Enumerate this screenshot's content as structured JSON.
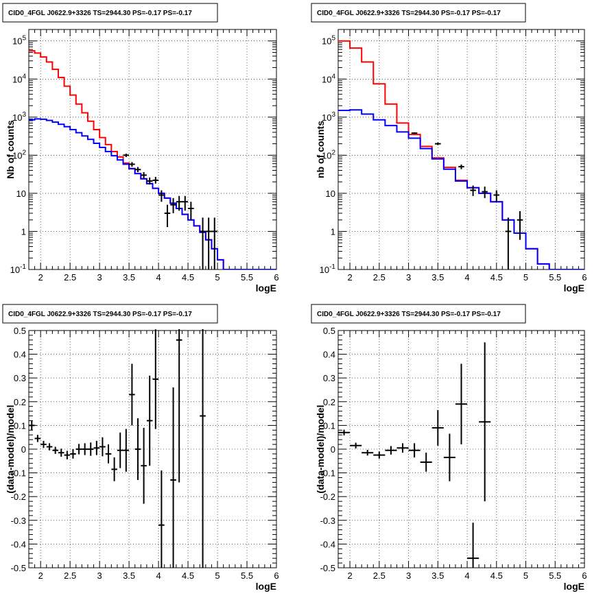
{
  "chart_data": [
    {
      "id": "spectrum-left",
      "type": "line",
      "title": "CID0_4FGL J0622.9+3326 TS=2944.30 PS=-0.17 PS=-0.17",
      "xlabel": "logE",
      "ylabel": "Nb of counts",
      "xlim": [
        1.8,
        6.0
      ],
      "ylim": [
        0.1,
        200000
      ],
      "yscale": "log",
      "grid": true,
      "xticks": [
        2,
        2.5,
        3,
        3.5,
        4,
        4.5,
        5,
        5.5,
        6
      ],
      "xtick_labels": [
        "2",
        "2.5",
        "3",
        "3.5",
        "4",
        "4.5",
        "5",
        "5.5",
        "6"
      ],
      "yticks": [
        0.1,
        1,
        10,
        100,
        1000,
        10000,
        100000
      ],
      "ytick_labels": [
        "10^-1",
        "1",
        "10",
        "10^2",
        "10^3",
        "10^4",
        "10^5"
      ],
      "bin_edges": [
        1.8,
        1.9,
        2.0,
        2.1,
        2.2,
        2.3,
        2.4,
        2.5,
        2.6,
        2.7,
        2.8,
        2.9,
        3.0,
        3.1,
        3.2,
        3.3,
        3.4,
        3.5,
        3.6,
        3.7,
        3.8,
        3.9,
        4.0,
        4.1,
        4.2,
        4.3,
        4.4,
        4.5,
        4.6,
        4.7,
        4.8,
        4.9,
        5.0,
        5.1,
        5.2,
        5.3,
        5.4,
        5.5,
        5.6,
        5.7,
        5.8,
        5.9,
        6.0
      ],
      "series": [
        {
          "name": "",
          "color": "#ff0000",
          "values": [
            55000,
            48000,
            38000,
            28000,
            18000,
            11000,
            6500,
            3800,
            2200,
            1300,
            780,
            470,
            290,
            190,
            125,
            90,
            62,
            45,
            33,
            24,
            18,
            13.5,
            10,
            7.5,
            5.5,
            4,
            2.8,
            2,
            1.4,
            0.95,
            0.6,
            0.35,
            0.18,
            0.1,
            0.1,
            0.1,
            0.1,
            0.1,
            0.1,
            0.1,
            0.1,
            0.1
          ]
        },
        {
          "name": "",
          "color": "#0000ff",
          "values": [
            850,
            900,
            880,
            820,
            740,
            650,
            560,
            470,
            390,
            320,
            260,
            205,
            160,
            125,
            97,
            75,
            58,
            44,
            33,
            24,
            18,
            13.5,
            10,
            7.5,
            5.5,
            4,
            2.8,
            2,
            1.4,
            0.95,
            0.6,
            0.35,
            0.18,
            0.1,
            0.1,
            0.1,
            0.1,
            0.1,
            0.1,
            0.1,
            0.1,
            0.1
          ]
        }
      ],
      "points": [
        {
          "x": 3.45,
          "y": 100,
          "lo": 90,
          "hi": 110
        },
        {
          "x": 3.55,
          "y": 58,
          "lo": 50,
          "hi": 66
        },
        {
          "x": 3.65,
          "y": 42,
          "lo": 36,
          "hi": 49
        },
        {
          "x": 3.75,
          "y": 30,
          "lo": 25,
          "hi": 36
        },
        {
          "x": 3.85,
          "y": 21,
          "lo": 17,
          "hi": 26
        },
        {
          "x": 3.95,
          "y": 22,
          "lo": 18,
          "hi": 27
        },
        {
          "x": 4.05,
          "y": 9,
          "lo": 6,
          "hi": 12
        },
        {
          "x": 4.15,
          "y": 3,
          "lo": 1.3,
          "hi": 5
        },
        {
          "x": 4.25,
          "y": 5,
          "lo": 3,
          "hi": 7.5
        },
        {
          "x": 4.35,
          "y": 6,
          "lo": 3.5,
          "hi": 8.5
        },
        {
          "x": 4.45,
          "y": 6,
          "lo": 3.5,
          "hi": 8.5
        },
        {
          "x": 4.55,
          "y": 4,
          "lo": 2,
          "hi": 6
        },
        {
          "x": 4.75,
          "y": 1,
          "lo": 0.1,
          "hi": 2.3
        },
        {
          "x": 4.85,
          "y": 1,
          "lo": 0.1,
          "hi": 2.3
        },
        {
          "x": 4.95,
          "y": 1,
          "lo": 0.1,
          "hi": 2.3
        }
      ]
    },
    {
      "id": "spectrum-right",
      "type": "line",
      "title": "CID0_4FGL J0622.9+3326 TS=2944.30 PS=-0.17 PS=-0.17",
      "xlabel": "logE",
      "ylabel": "nb of counts",
      "xlim": [
        1.8,
        6.0
      ],
      "ylim": [
        0.1,
        200000
      ],
      "yscale": "log",
      "grid": true,
      "xticks": [
        2,
        2.5,
        3,
        3.5,
        4,
        4.5,
        5,
        5.5,
        6
      ],
      "xtick_labels": [
        "2",
        "2.5",
        "3",
        "3.5",
        "4",
        "4.5",
        "5",
        "5.5",
        "6"
      ],
      "yticks": [
        0.1,
        1,
        10,
        100,
        1000,
        10000,
        100000
      ],
      "ytick_labels": [
        "10^-1",
        "1",
        "10",
        "10^2",
        "10^3",
        "10^4",
        "10^5"
      ],
      "bin_edges": [
        1.8,
        2.0,
        2.2,
        2.4,
        2.6,
        2.8,
        3.0,
        3.2,
        3.4,
        3.6,
        3.8,
        4.0,
        4.2,
        4.4,
        4.6,
        4.8,
        5.0,
        5.2,
        5.4,
        5.6,
        5.8,
        6.0
      ],
      "series": [
        {
          "name": "",
          "color": "#ff0000",
          "values": [
            100000,
            65000,
            28000,
            7500,
            2200,
            700,
            350,
            170,
            85,
            48,
            22,
            14,
            10,
            6,
            2,
            0.9,
            0.35,
            0.14,
            0.1,
            0.1,
            0.1
          ]
        },
        {
          "name": "",
          "color": "#0000ff",
          "values": [
            1500,
            1550,
            1200,
            850,
            600,
            410,
            280,
            150,
            80,
            43,
            21,
            14,
            10,
            6,
            2,
            0.9,
            0.35,
            0.14,
            0.1,
            0.1,
            0.1
          ]
        }
      ],
      "points": [
        {
          "x": 3.1,
          "y": 380,
          "lo": 360,
          "hi": 400
        },
        {
          "x": 3.5,
          "y": 200,
          "lo": 185,
          "hi": 215
        },
        {
          "x": 3.9,
          "y": 50,
          "lo": 43,
          "hi": 57
        },
        {
          "x": 4.1,
          "y": 12,
          "lo": 8.5,
          "hi": 16
        },
        {
          "x": 4.3,
          "y": 11,
          "lo": 7.5,
          "hi": 15
        },
        {
          "x": 4.5,
          "y": 9,
          "lo": 6,
          "hi": 12
        },
        {
          "x": 4.7,
          "y": 1,
          "lo": 0.1,
          "hi": 2.3
        },
        {
          "x": 4.9,
          "y": 2,
          "lo": 0.6,
          "hi": 3.4
        }
      ]
    },
    {
      "id": "residual-left",
      "type": "scatter",
      "title": "CID0_4FGL J0622.9+3326 TS=2944.30 PS=-0.17 PS=-0.17",
      "xlabel": "logE",
      "ylabel": "(data-model)/model",
      "xlim": [
        1.8,
        6.0
      ],
      "ylim": [
        -0.5,
        0.5
      ],
      "grid": true,
      "xticks": [
        2,
        2.5,
        3,
        3.5,
        4,
        4.5,
        5,
        5.5,
        6
      ],
      "xtick_labels": [
        "2",
        "2.5",
        "3",
        "3.5",
        "4",
        "4.5",
        "5",
        "5.5",
        "6"
      ],
      "yticks": [
        -0.5,
        -0.4,
        -0.3,
        -0.2,
        -0.1,
        0,
        0.1,
        0.2,
        0.3,
        0.4,
        0.5
      ],
      "ytick_labels": [
        "-0.5",
        "-0.4",
        "-0.3",
        "-0.2",
        "-0.1",
        "0",
        "0.1",
        "0.2",
        "0.3",
        "0.4",
        "0.5"
      ],
      "bin_width": 0.1,
      "points": [
        {
          "x": 1.85,
          "y": 0.1,
          "err": 0.02
        },
        {
          "x": 1.95,
          "y": 0.045,
          "err": 0.015
        },
        {
          "x": 2.05,
          "y": 0.02,
          "err": 0.015
        },
        {
          "x": 2.15,
          "y": 0.01,
          "err": 0.015
        },
        {
          "x": 2.25,
          "y": -0.005,
          "err": 0.015
        },
        {
          "x": 2.35,
          "y": -0.015,
          "err": 0.017
        },
        {
          "x": 2.45,
          "y": -0.025,
          "err": 0.018
        },
        {
          "x": 2.55,
          "y": -0.02,
          "err": 0.02
        },
        {
          "x": 2.65,
          "y": 0.0,
          "err": 0.022
        },
        {
          "x": 2.75,
          "y": 0.0,
          "err": 0.025
        },
        {
          "x": 2.85,
          "y": 0.0,
          "err": 0.028
        },
        {
          "x": 2.95,
          "y": 0.005,
          "err": 0.03
        },
        {
          "x": 3.05,
          "y": 0.01,
          "err": 0.04
        },
        {
          "x": 3.15,
          "y": -0.02,
          "err": 0.04
        },
        {
          "x": 3.25,
          "y": -0.085,
          "err": 0.05
        },
        {
          "x": 3.35,
          "y": -0.005,
          "err": 0.075
        },
        {
          "x": 3.45,
          "y": -0.005,
          "err": 0.09
        },
        {
          "x": 3.55,
          "y": 0.23,
          "err": 0.13
        },
        {
          "x": 3.65,
          "y": 0.0,
          "err": 0.13
        },
        {
          "x": 3.75,
          "y": -0.07,
          "err": 0.16
        },
        {
          "x": 3.85,
          "y": 0.12,
          "err": 0.19
        },
        {
          "x": 3.95,
          "y": 0.295,
          "err": 0.21
        },
        {
          "x": 4.05,
          "y": -0.32,
          "err": 0.23
        },
        {
          "x": 4.25,
          "y": -0.13,
          "err": 0.39
        },
        {
          "x": 4.35,
          "y": 0.46,
          "err": 0.6
        },
        {
          "x": 4.75,
          "y": 0.14,
          "err": 0.75
        }
      ]
    },
    {
      "id": "residual-right",
      "type": "scatter",
      "title": "CID0_4FGL J0622.9+3326 TS=2944.30 PS=-0.17 PS=-0.17",
      "xlabel": "logE",
      "ylabel": "(data-model)/model",
      "xlim": [
        1.8,
        6.0
      ],
      "ylim": [
        -0.5,
        0.5
      ],
      "grid": true,
      "xticks": [
        2,
        2.5,
        3,
        3.5,
        4,
        4.5,
        5,
        5.5,
        6
      ],
      "xtick_labels": [
        "2",
        "2.5",
        "3",
        "3.5",
        "4",
        "4.5",
        "5",
        "5.5",
        "6"
      ],
      "yticks": [
        -0.5,
        -0.4,
        -0.3,
        -0.2,
        -0.1,
        0,
        0.1,
        0.2,
        0.3,
        0.4,
        0.5
      ],
      "ytick_labels": [
        "-0.5",
        "-0.4",
        "-0.3",
        "-0.2",
        "-0.1",
        "0",
        "0.1",
        "0.2",
        "0.3",
        "0.4",
        "0.5"
      ],
      "bin_width": 0.2,
      "points": [
        {
          "x": 1.9,
          "y": 0.07,
          "err": 0.012
        },
        {
          "x": 2.1,
          "y": 0.015,
          "err": 0.012
        },
        {
          "x": 2.3,
          "y": -0.015,
          "err": 0.012
        },
        {
          "x": 2.5,
          "y": -0.025,
          "err": 0.015
        },
        {
          "x": 2.7,
          "y": -0.005,
          "err": 0.018
        },
        {
          "x": 2.9,
          "y": 0.005,
          "err": 0.02
        },
        {
          "x": 3.1,
          "y": -0.005,
          "err": 0.03
        },
        {
          "x": 3.3,
          "y": -0.055,
          "err": 0.04
        },
        {
          "x": 3.5,
          "y": 0.09,
          "err": 0.075
        },
        {
          "x": 3.7,
          "y": -0.035,
          "err": 0.1
        },
        {
          "x": 3.9,
          "y": 0.19,
          "err": 0.17
        },
        {
          "x": 4.1,
          "y": -0.46,
          "err": 0.15
        },
        {
          "x": 4.3,
          "y": 0.115,
          "err": 0.335
        }
      ]
    }
  ]
}
